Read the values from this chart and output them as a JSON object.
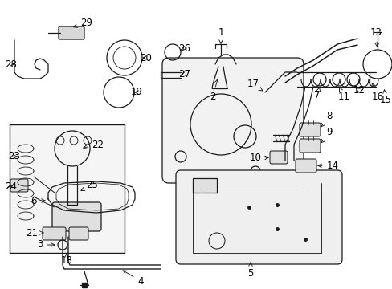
{
  "bg_color": "#ffffff",
  "line_color": "#1a1a1a",
  "label_color": "#000000",
  "fig_width": 4.89,
  "fig_height": 3.6,
  "dpi": 100,
  "label_fontsize": 8.5,
  "lw": 0.9
}
